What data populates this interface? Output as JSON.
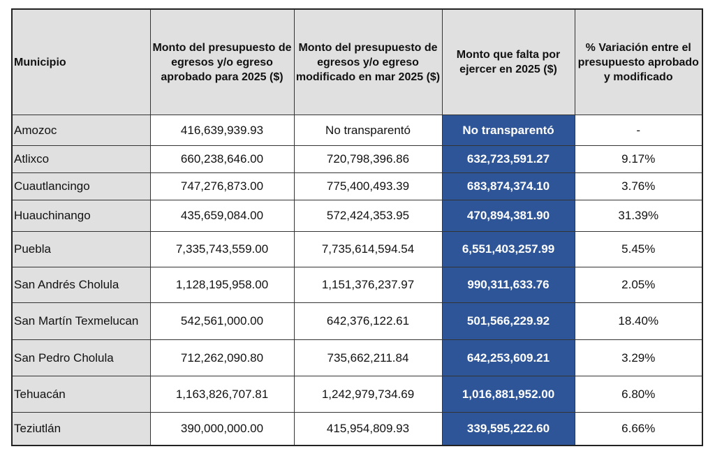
{
  "headers": [
    "Municipio",
    "Monto del presupuesto de egresos y/o egreso aprobado para 2025 ($)",
    "Monto del presupuesto de egresos y/o egreso modificado en mar 2025 ($)",
    "Monto que falta por ejercer en 2025 ($)",
    "% Variación entre el presupuesto aprobado y modificado"
  ],
  "rows": [
    [
      "Amozoc",
      "416,639,939.93",
      "No transparentó",
      "No transparentó",
      "-"
    ],
    [
      "Atlixco",
      "660,238,646.00",
      "720,798,396.86",
      "632,723,591.27",
      "9.17%"
    ],
    [
      "Cuautlancingo",
      "747,276,873.00",
      "775,400,493.39",
      "683,874,374.10",
      "3.76%"
    ],
    [
      "Huauchinango",
      "435,659,084.00",
      "572,424,353.95",
      "470,894,381.90",
      "31.39%"
    ],
    [
      "Puebla",
      "7,335,743,559.00",
      "7,735,614,594.54",
      "6,551,403,257.99",
      "5.45%"
    ],
    [
      "San Andrés Cholula",
      "1,128,195,958.00",
      "1,151,376,237.97",
      "990,311,633.76",
      "2.05%"
    ],
    [
      "San Martín Texmelucan",
      "542,561,000.00",
      "642,376,122.61",
      "501,566,229.92",
      "18.40%"
    ],
    [
      "San Pedro Cholula",
      "712,262,090.80",
      "735,662,211.84",
      "642,253,609.21",
      "3.29%"
    ],
    [
      "Tehuacán",
      "1,163,826,707.81",
      "1,242,979,734.69",
      "1,016,881,952.00",
      "6.80%"
    ],
    [
      "Teziutlán",
      "390,000,000.00",
      "415,954,809.93",
      "339,595,222.60",
      "6.66%"
    ]
  ],
  "colors": {
    "header_bg": "#e0e0e0",
    "highlight_bg": "#2e5597",
    "highlight_text": "#ffffff"
  }
}
